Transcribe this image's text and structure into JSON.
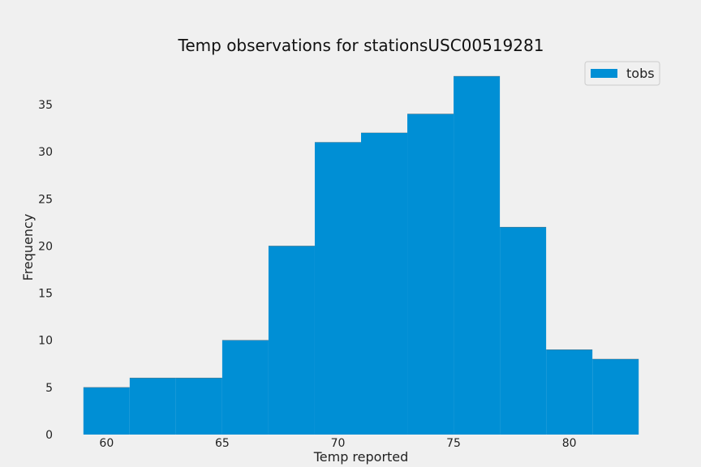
{
  "chart_data": {
    "type": "bar",
    "title": "Temp observations for stationsUSC00519281",
    "xlabel": "Temp reported",
    "ylabel": "Frequency",
    "bins": [
      {
        "x0": 59,
        "x1": 61,
        "value": 5
      },
      {
        "x0": 61,
        "x1": 63,
        "value": 6
      },
      {
        "x0": 63,
        "x1": 65,
        "value": 6
      },
      {
        "x0": 65,
        "x1": 67,
        "value": 10
      },
      {
        "x0": 67,
        "x1": 69,
        "value": 20
      },
      {
        "x0": 69,
        "x1": 71,
        "value": 31
      },
      {
        "x0": 71,
        "x1": 73,
        "value": 32
      },
      {
        "x0": 73,
        "x1": 75,
        "value": 34
      },
      {
        "x0": 75,
        "x1": 77,
        "value": 38
      },
      {
        "x0": 77,
        "x1": 79,
        "value": 22
      },
      {
        "x0": 79,
        "x1": 81,
        "value": 9
      },
      {
        "x0": 81,
        "x1": 83,
        "value": 8
      }
    ],
    "xticks": [
      "60",
      "65",
      "70",
      "75",
      "80"
    ],
    "yticks": [
      "0",
      "5",
      "10",
      "15",
      "20",
      "25",
      "30",
      "35"
    ],
    "xlim": [
      58.2,
      83.8
    ],
    "ylim": [
      0,
      39.9
    ],
    "series": [
      {
        "name": "tobs",
        "color": "#008fd5"
      }
    ],
    "legend_position": "top-right",
    "grid": false
  }
}
